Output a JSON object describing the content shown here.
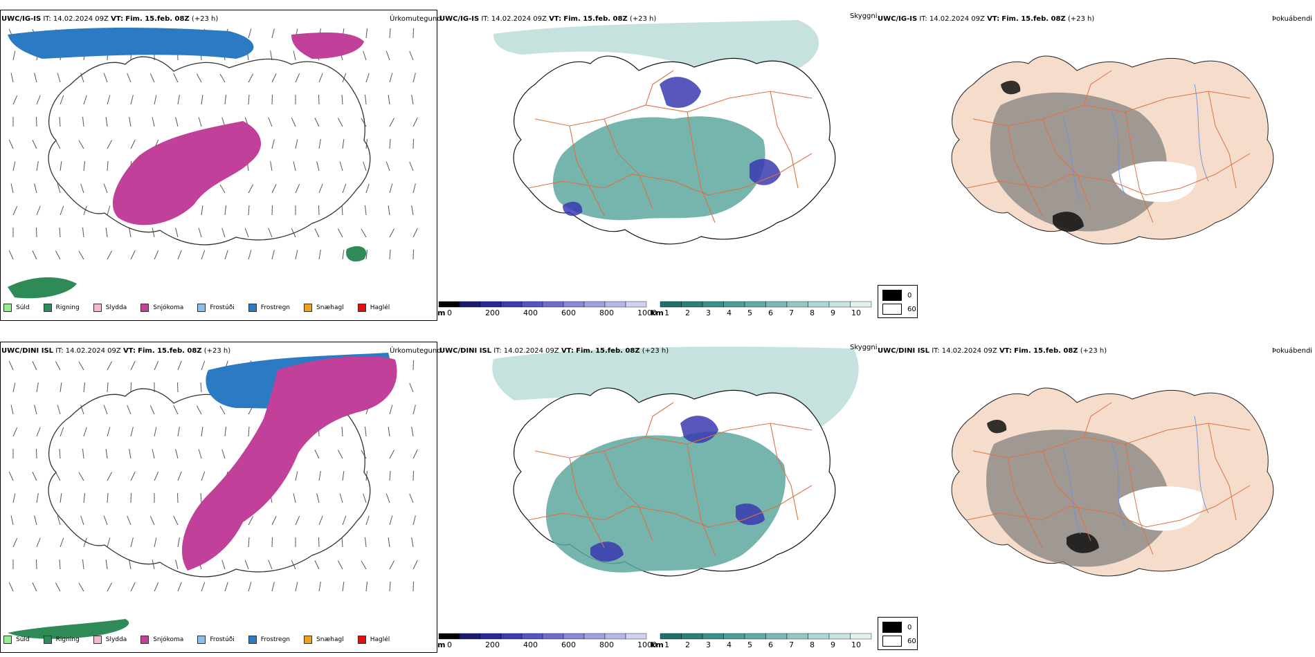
{
  "rows": [
    {
      "model": "UWC/IG-IS",
      "it_label": "IT:",
      "it_value": "14.02.2024 09Z",
      "vt_label": "VT:",
      "vt_value": "Fim. 15.feb. 08Z",
      "lead": "(+23 h)",
      "field_precip": "Úrkomutegund",
      "field_cloud": "Skyggni",
      "field_fog": "Þokuábendi"
    },
    {
      "model": "UWC/DINI ISL",
      "it_label": "IT:",
      "it_value": "14.02.2024 09Z",
      "vt_label": "VT:",
      "vt_value": "Fim. 15.feb. 08Z",
      "lead": "(+23 h)",
      "field_precip": "Úrkomutegund",
      "field_cloud": "Skyggni",
      "field_fog": "Þokuábendi"
    }
  ],
  "precip_legend": [
    {
      "label": "Súld",
      "color": "#90ee90"
    },
    {
      "label": "Rigning",
      "color": "#2e8b57"
    },
    {
      "label": "Slydda",
      "color": "#f4b6d2"
    },
    {
      "label": "Snjókoma",
      "color": "#c0409a"
    },
    {
      "label": "Frostúði",
      "color": "#87bdf0"
    },
    {
      "label": "Frostregn",
      "color": "#2b7bc4"
    },
    {
      "label": "Snæhagl",
      "color": "#f0a020"
    },
    {
      "label": "Haglél",
      "color": "#e01010"
    }
  ],
  "ceiling_bar": {
    "unit": "m",
    "ticks": [
      "0",
      "200",
      "400",
      "600",
      "800",
      "1000"
    ],
    "colors": [
      "#000000",
      "#1a1a6e",
      "#2a2a96",
      "#3d3db0",
      "#5555c0",
      "#6e6ec8",
      "#8888d4",
      "#a0a0dc",
      "#b8b8e6",
      "#d0d0f0"
    ]
  },
  "visibility_bar": {
    "unit": "km",
    "ticks": [
      "1",
      "2",
      "3",
      "4",
      "5",
      "6",
      "7",
      "8",
      "9",
      "10"
    ],
    "colors": [
      "#1f6f6a",
      "#2b807a",
      "#3a908a",
      "#4c9e98",
      "#62aca6",
      "#7abab4",
      "#94c8c3",
      "#aed6d2",
      "#c8e4e1",
      "#e2f1ef"
    ]
  },
  "fog_legend": [
    {
      "label": "0",
      "color": "#000000"
    },
    {
      "label": "60",
      "color": "#ffffff"
    }
  ],
  "colors": {
    "land_fill_fog": "#f5dccb",
    "road": "#e07040",
    "river": "#6f8fe0",
    "sea_cloud": "#7fbfb8",
    "snow": "#c0409a",
    "freezing_rain": "#2b7bc4"
  }
}
